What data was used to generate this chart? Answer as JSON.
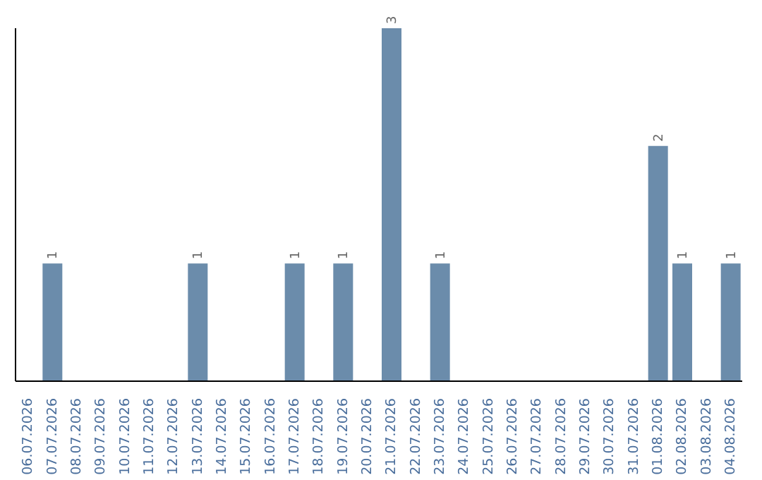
{
  "chart_data": {
    "type": "bar",
    "categories": [
      "06.07.2026",
      "07.07.2026",
      "08.07.2026",
      "09.07.2026",
      "10.07.2026",
      "11.07.2026",
      "12.07.2026",
      "13.07.2026",
      "14.07.2026",
      "15.07.2026",
      "16.07.2026",
      "17.07.2026",
      "18.07.2026",
      "19.07.2026",
      "20.07.2026",
      "21.07.2026",
      "22.07.2026",
      "23.07.2026",
      "24.07.2026",
      "25.07.2026",
      "26.07.2026",
      "27.07.2026",
      "28.07.2026",
      "29.07.2026",
      "30.07.2026",
      "31.07.2026",
      "01.08.2026",
      "02.08.2026",
      "03.08.2026",
      "04.08.2026"
    ],
    "values": [
      0,
      1,
      0,
      0,
      0,
      0,
      0,
      1,
      0,
      0,
      0,
      1,
      0,
      1,
      0,
      3,
      0,
      1,
      0,
      0,
      0,
      0,
      0,
      0,
      0,
      0,
      2,
      1,
      0,
      1
    ],
    "value_labels": [
      null,
      "1",
      null,
      null,
      null,
      null,
      null,
      "1",
      null,
      null,
      null,
      "1",
      null,
      "1",
      null,
      "3",
      null,
      "1",
      null,
      null,
      null,
      null,
      null,
      null,
      null,
      null,
      "2",
      "1",
      null,
      "1"
    ],
    "color": "#6b8cab",
    "tick_labels": "x"
  }
}
